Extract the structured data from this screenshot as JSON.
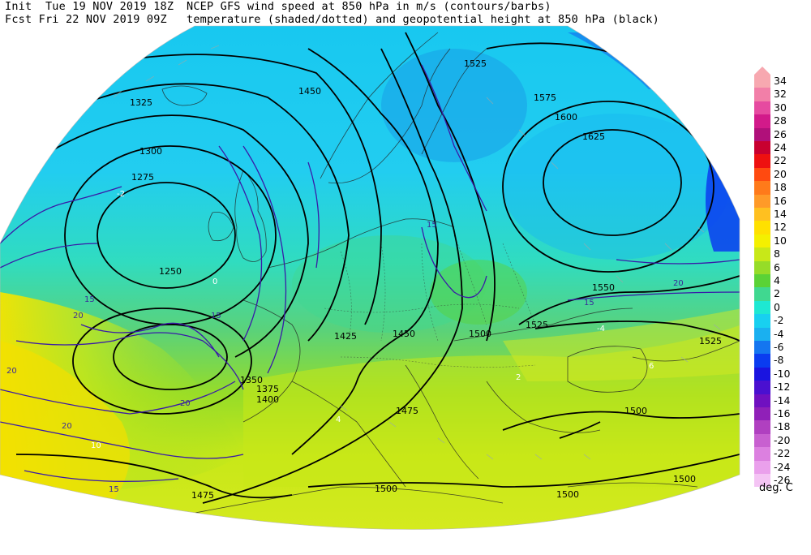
{
  "header": {
    "line1_left": "Init  Tue 19 NOV 2019 18Z",
    "line2_left": "Fcst Fri 22 NOV 2019 09Z",
    "line1_right": "NCEP GFS wind speed at 850 hPa in m/s (contours/barbs)",
    "line2_right": "temperature (shaded/dotted) and geopotential height at 850 hPa (black)"
  },
  "colorbar": {
    "units": "deg. C",
    "levels": [
      {
        "label": "34",
        "color": "#f7a8b0"
      },
      {
        "label": "32",
        "color": "#f27fa8"
      },
      {
        "label": "30",
        "color": "#e64aa0"
      },
      {
        "label": "28",
        "color": "#d21a8a"
      },
      {
        "label": "26",
        "color": "#b0107a"
      },
      {
        "label": "24",
        "color": "#c80030"
      },
      {
        "label": "22",
        "color": "#ee1010"
      },
      {
        "label": "20",
        "color": "#ff4a10"
      },
      {
        "label": "18",
        "color": "#ff7a1a"
      },
      {
        "label": "16",
        "color": "#ff9a28"
      },
      {
        "label": "14",
        "color": "#ffc020"
      },
      {
        "label": "12",
        "color": "#ffe000"
      },
      {
        "label": "10",
        "color": "#f4f000"
      },
      {
        "label": "8",
        "color": "#c8e818"
      },
      {
        "label": "6",
        "color": "#96dc28"
      },
      {
        "label": "4",
        "color": "#5ad236"
      },
      {
        "label": "2",
        "color": "#40d890"
      },
      {
        "label": "0",
        "color": "#1ee8d2"
      },
      {
        "label": "-2",
        "color": "#18d0f0"
      },
      {
        "label": "-4",
        "color": "#1ab0f0"
      },
      {
        "label": "-6",
        "color": "#1476f0"
      },
      {
        "label": "-8",
        "color": "#0a3cf0"
      },
      {
        "label": "-10",
        "color": "#1a14e0"
      },
      {
        "label": "-12",
        "color": "#4a10d0"
      },
      {
        "label": "-14",
        "color": "#7010c0"
      },
      {
        "label": "-16",
        "color": "#9020b8"
      },
      {
        "label": "-18",
        "color": "#b040c0"
      },
      {
        "label": "-20",
        "color": "#c860d0"
      },
      {
        "label": "-22",
        "color": "#dc80e0"
      },
      {
        "label": "-24",
        "color": "#eaa0ec"
      },
      {
        "label": "-26",
        "color": "#f4c4f4"
      }
    ]
  },
  "map": {
    "height_contour_labels": [
      "1250",
      "1275",
      "1300",
      "1325",
      "1350",
      "1375",
      "1400",
      "1425",
      "1450",
      "1475",
      "1500",
      "1525",
      "1550",
      "1575",
      "1600",
      "1625"
    ],
    "height_labels": {
      "h1250": "1250",
      "h1275": "1275",
      "h1300": "1300",
      "h1325": "1325",
      "h1450a": "1450",
      "h1450b": "1450",
      "h1425": "1425",
      "h1350": "1350",
      "h1475a": "1475",
      "h1475b": "1475",
      "h1500a": "1500",
      "h1500b": "1500",
      "h1500c": "1500",
      "h1500d": "1500",
      "h1500e": "1500",
      "h1525a": "1525",
      "h1525b": "1525",
      "h1525c": "1525",
      "h1550": "1550",
      "h1575": "1575",
      "h1600": "1600",
      "h1625": "1625",
      "h1400": "1400",
      "h1375": "1375"
    },
    "wind_labels": {
      "w15a": "15",
      "w15b": "15",
      "w15c": "15",
      "w15d": "15",
      "w15e": "15",
      "w20a": "20",
      "w20b": "20",
      "w20c": "20",
      "w20d": "20",
      "w20e": "20"
    },
    "temp_labels": {
      "t0": "0",
      "tm2": "-2",
      "tm4": "-4",
      "t2": "2",
      "t4": "4",
      "t6": "6",
      "t8": "8",
      "t10": "10"
    }
  }
}
